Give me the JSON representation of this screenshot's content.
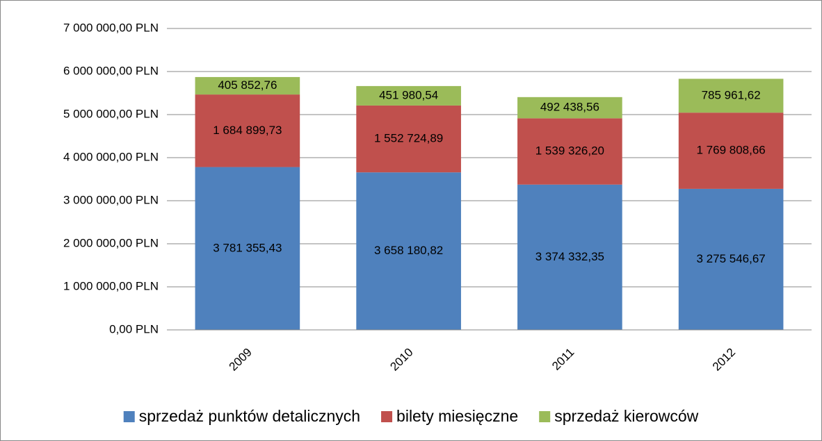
{
  "chart_data": {
    "type": "stacked_bar",
    "categories": [
      "2009",
      "2010",
      "2011",
      "2012"
    ],
    "series": [
      {
        "name": "sprzedaż punktów detalicznych",
        "color": "#4f81bd",
        "values": [
          3781355.43,
          3658180.82,
          3374332.35,
          3275546.67
        ],
        "value_labels": [
          "3 781 355,43",
          "3 658 180,82",
          "3 374 332,35",
          "3 275 546,67"
        ]
      },
      {
        "name": "bilety miesięczne",
        "color": "#c0504d",
        "values": [
          1684899.73,
          1552724.89,
          1539326.2,
          1769808.66
        ],
        "value_labels": [
          "1 684 899,73",
          "1 552 724,89",
          "1 539 326,20",
          "1 769 808,66"
        ]
      },
      {
        "name": "sprzedaż kierowców",
        "color": "#9bbb59",
        "values": [
          405852.76,
          451980.54,
          492438.56,
          785961.62
        ],
        "value_labels": [
          "405 852,76",
          "451 980,54",
          "492 438,56",
          "785 961,62"
        ]
      }
    ],
    "ylim": [
      0,
      7000000
    ],
    "yticks": [
      {
        "value": 0,
        "label": "0,00 PLN"
      },
      {
        "value": 1000000,
        "label": "1 000 000,00 PLN"
      },
      {
        "value": 2000000,
        "label": "2 000 000,00 PLN"
      },
      {
        "value": 3000000,
        "label": "3 000 000,00 PLN"
      },
      {
        "value": 4000000,
        "label": "4 000 000,00 PLN"
      },
      {
        "value": 5000000,
        "label": "5 000 000,00 PLN"
      },
      {
        "value": 6000000,
        "label": "6 000 000,00 PLN"
      },
      {
        "value": 7000000,
        "label": "7 000 000,00 PLN"
      }
    ],
    "grid": true,
    "legend": "bottom"
  }
}
